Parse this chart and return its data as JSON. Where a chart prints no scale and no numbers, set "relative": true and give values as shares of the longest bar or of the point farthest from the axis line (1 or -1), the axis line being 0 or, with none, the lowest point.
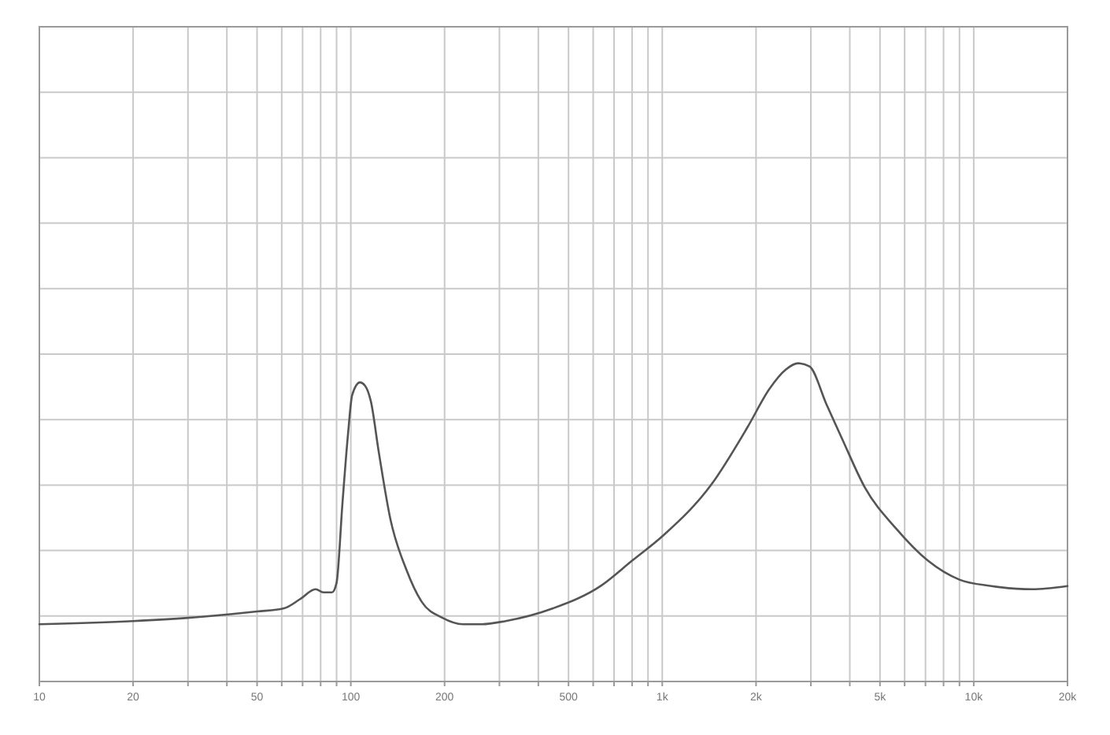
{
  "chart_data": {
    "type": "line",
    "relative": true,
    "log": "x",
    "grid": true,
    "color": "#555555",
    "x": [
      10,
      20,
      30,
      50,
      61,
      69,
      77,
      82,
      87,
      90,
      94,
      98,
      101,
      107,
      111,
      116,
      123,
      134,
      151,
      169,
      197,
      229,
      264,
      314,
      446,
      634,
      801,
      1010,
      1440,
      1880,
      2210,
      2490,
      2730,
      2970,
      3370,
      3790,
      4470,
      5640,
      7120,
      9000,
      11400,
      15400,
      20000
    ],
    "values": [
      0.18,
      0.19,
      0.2,
      0.22,
      0.23,
      0.26,
      0.29,
      0.28,
      0.28,
      0.31,
      0.56,
      0.78,
      0.9,
      0.94,
      0.93,
      0.88,
      0.72,
      0.51,
      0.35,
      0.25,
      0.2,
      0.18,
      0.18,
      0.19,
      0.23,
      0.3,
      0.38,
      0.46,
      0.62,
      0.8,
      0.92,
      0.98,
      1,
      0.99,
      0.87,
      0.76,
      0.61,
      0.48,
      0.38,
      0.32,
      0.3,
      0.29,
      0.3
    ],
    "xlim": [
      10,
      20000
    ],
    "xticks": [
      10,
      20,
      {
        "value": 30,
        "label": null
      },
      {
        "value": 40,
        "label": null
      },
      50,
      {
        "value": 60,
        "label": null
      },
      {
        "value": 70,
        "label": null
      },
      {
        "value": 80,
        "label": null
      },
      {
        "value": 90,
        "label": null
      },
      100,
      200,
      {
        "value": 300,
        "label": null
      },
      {
        "value": 400,
        "label": null
      },
      500,
      {
        "value": 600,
        "label": null
      },
      {
        "value": 700,
        "label": null
      },
      {
        "value": 800,
        "label": null
      },
      {
        "value": 900,
        "label": null
      },
      {
        "value": 1000,
        "label": "1k"
      },
      {
        "value": 2000,
        "label": "2k"
      },
      {
        "value": 3000,
        "label": null
      },
      {
        "value": 4000,
        "label": null
      },
      {
        "value": 5000,
        "label": "5k"
      },
      {
        "value": 6000,
        "label": null
      },
      {
        "value": 7000,
        "label": null
      },
      {
        "value": 8000,
        "label": null
      },
      {
        "value": 9000,
        "label": null
      },
      {
        "value": 10000,
        "label": "10k"
      },
      {
        "value": 20000,
        "label": "20k"
      }
    ]
  }
}
